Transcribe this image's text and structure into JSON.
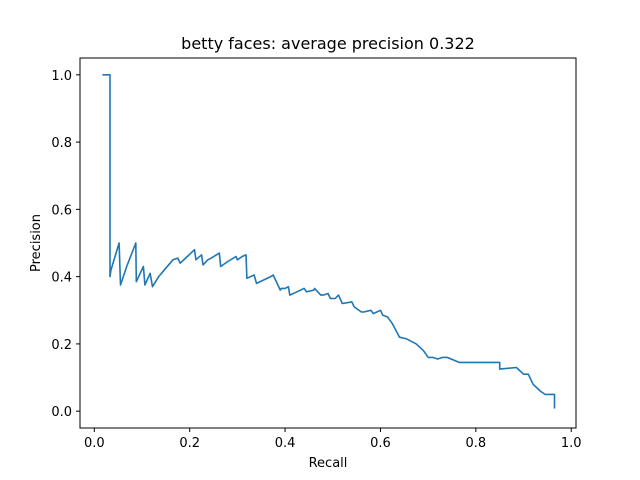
{
  "chart_data": {
    "type": "line",
    "title": "betty faces: average precision 0.322",
    "xlabel": "Recall",
    "ylabel": "Precision",
    "xlim": [
      -0.03,
      1.01
    ],
    "ylim": [
      -0.05,
      1.05
    ],
    "xticks": [
      0.0,
      0.2,
      0.4,
      0.6,
      0.8,
      1.0
    ],
    "xtick_labels": [
      "0.0",
      "0.2",
      "0.4",
      "0.6",
      "0.8",
      "1.0"
    ],
    "yticks": [
      0.0,
      0.2,
      0.4,
      0.6,
      0.8,
      1.0
    ],
    "ytick_labels": [
      "0.0",
      "0.2",
      "0.4",
      "0.6",
      "0.8",
      "1.0"
    ],
    "grid": false,
    "legend": "none",
    "series": [
      {
        "color": "#1f77b4",
        "x": [
          0.017,
          0.033,
          0.033,
          0.035,
          0.052,
          0.055,
          0.068,
          0.087,
          0.088,
          0.103,
          0.106,
          0.117,
          0.122,
          0.135,
          0.15,
          0.165,
          0.175,
          0.18,
          0.195,
          0.21,
          0.213,
          0.225,
          0.228,
          0.238,
          0.245,
          0.262,
          0.265,
          0.28,
          0.297,
          0.3,
          0.31,
          0.318,
          0.32,
          0.335,
          0.34,
          0.355,
          0.37,
          0.375,
          0.39,
          0.392,
          0.4,
          0.407,
          0.41,
          0.425,
          0.44,
          0.445,
          0.46,
          0.462,
          0.475,
          0.48,
          0.49,
          0.495,
          0.505,
          0.512,
          0.52,
          0.52,
          0.54,
          0.545,
          0.56,
          0.565,
          0.58,
          0.585,
          0.6,
          0.605,
          0.615,
          0.62,
          0.625,
          0.64,
          0.64,
          0.655,
          0.675,
          0.69,
          0.7,
          0.71,
          0.72,
          0.73,
          0.74,
          0.765,
          0.77,
          0.81,
          0.84,
          0.85,
          0.85,
          0.885,
          0.9,
          0.91,
          0.92,
          0.935,
          0.935,
          0.945,
          0.945,
          0.965,
          0.965
        ],
        "y": [
          1.0,
          1.0,
          0.4,
          0.42,
          0.5,
          0.375,
          0.43,
          0.5,
          0.385,
          0.43,
          0.375,
          0.41,
          0.37,
          0.4,
          0.425,
          0.45,
          0.455,
          0.44,
          0.46,
          0.48,
          0.45,
          0.465,
          0.435,
          0.45,
          0.455,
          0.47,
          0.43,
          0.445,
          0.46,
          0.45,
          0.46,
          0.465,
          0.395,
          0.405,
          0.38,
          0.39,
          0.4,
          0.405,
          0.36,
          0.365,
          0.365,
          0.37,
          0.345,
          0.355,
          0.365,
          0.355,
          0.36,
          0.365,
          0.345,
          0.345,
          0.35,
          0.335,
          0.335,
          0.345,
          0.32,
          0.32,
          0.325,
          0.31,
          0.295,
          0.295,
          0.3,
          0.29,
          0.3,
          0.285,
          0.28,
          0.27,
          0.26,
          0.22,
          0.22,
          0.215,
          0.2,
          0.18,
          0.16,
          0.16,
          0.155,
          0.16,
          0.16,
          0.145,
          0.145,
          0.145,
          0.145,
          0.145,
          0.125,
          0.13,
          0.11,
          0.11,
          0.08,
          0.06,
          0.06,
          0.05,
          0.05,
          0.05,
          0.008
        ]
      }
    ]
  }
}
